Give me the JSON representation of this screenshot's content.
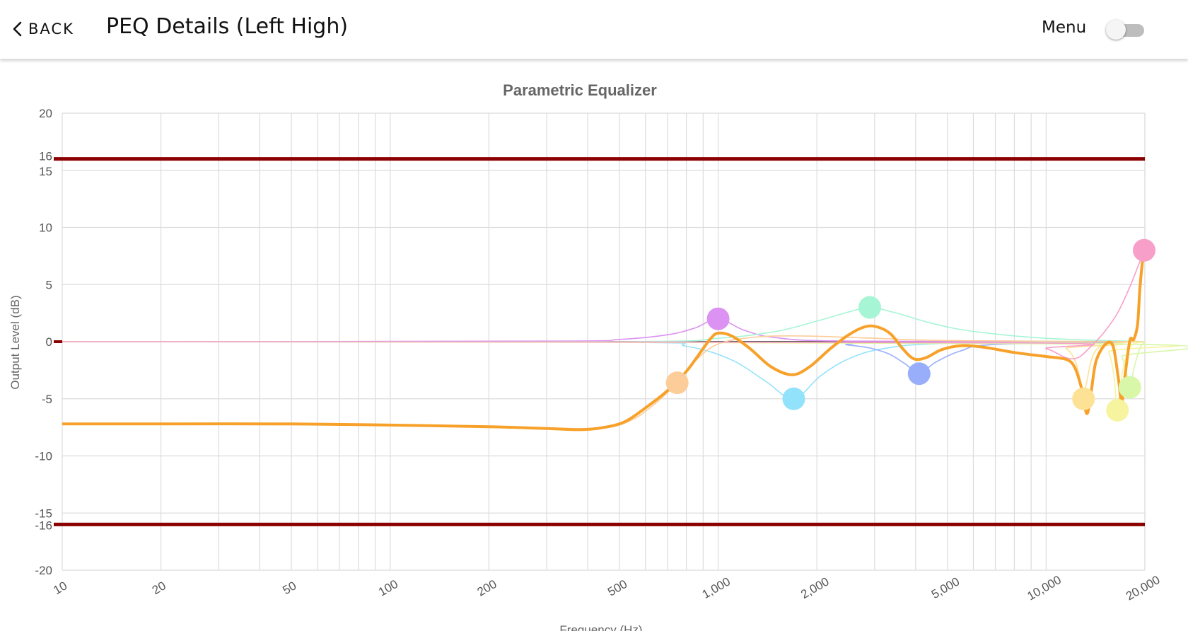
{
  "header": {
    "back_label": "BACK",
    "title": "PEQ Details (Left High)",
    "menu_label": "Menu",
    "menu_toggle_on": false
  },
  "chart_data": {
    "type": "line",
    "title": "Parametric Equalizer",
    "xlabel": "Frequency (Hz)",
    "ylabel": "Output Level (dB)",
    "x_scale": "log",
    "xlim": [
      10,
      20000
    ],
    "ylim": [
      -20,
      20
    ],
    "x_ticks": [
      {
        "value": 10,
        "label": "10"
      },
      {
        "value": 20,
        "label": "20"
      },
      {
        "value": 50,
        "label": "50"
      },
      {
        "value": 100,
        "label": "100"
      },
      {
        "value": 200,
        "label": "200"
      },
      {
        "value": 500,
        "label": "500"
      },
      {
        "value": 1000,
        "label": "1,000"
      },
      {
        "value": 2000,
        "label": "2,000"
      },
      {
        "value": 5000,
        "label": "5,000"
      },
      {
        "value": 10000,
        "label": "10,000"
      },
      {
        "value": 20000,
        "label": "20,000"
      }
    ],
    "y_ticks": [
      {
        "value": 20,
        "label": "20"
      },
      {
        "value": 16,
        "label": "16"
      },
      {
        "value": 15,
        "label": "15"
      },
      {
        "value": 10,
        "label": "10"
      },
      {
        "value": 5,
        "label": "5"
      },
      {
        "value": 0,
        "label": "0"
      },
      {
        "value": -5,
        "label": "-5"
      },
      {
        "value": -10,
        "label": "-10"
      },
      {
        "value": -15,
        "label": "-15"
      },
      {
        "value": -16,
        "label": "-16"
      },
      {
        "value": -20,
        "label": "-20"
      }
    ],
    "grid": true,
    "limit_lines": [
      16,
      -16
    ],
    "limit_color": "#8b0000",
    "response_color": "#f7a12a",
    "response_curve": [
      [
        10,
        -7.2
      ],
      [
        20,
        -7.2
      ],
      [
        50,
        -7.2
      ],
      [
        100,
        -7.3
      ],
      [
        200,
        -7.45
      ],
      [
        300,
        -7.6
      ],
      [
        380,
        -7.7
      ],
      [
        450,
        -7.5
      ],
      [
        520,
        -7.0
      ],
      [
        600,
        -5.8
      ],
      [
        700,
        -4.3
      ],
      [
        800,
        -2.6
      ],
      [
        900,
        -0.6
      ],
      [
        950,
        0.3
      ],
      [
        1000,
        0.75
      ],
      [
        1100,
        0.5
      ],
      [
        1250,
        -0.6
      ],
      [
        1450,
        -2.2
      ],
      [
        1680,
        -2.9
      ],
      [
        1900,
        -2.2
      ],
      [
        2200,
        -0.6
      ],
      [
        2500,
        0.6
      ],
      [
        2800,
        1.3
      ],
      [
        3050,
        1.3
      ],
      [
        3350,
        0.7
      ],
      [
        3650,
        -0.6
      ],
      [
        3950,
        -1.5
      ],
      [
        4300,
        -1.4
      ],
      [
        4800,
        -0.7
      ],
      [
        5500,
        -0.35
      ],
      [
        6500,
        -0.5
      ],
      [
        8000,
        -0.95
      ],
      [
        10000,
        -1.3
      ],
      [
        11500,
        -1.55
      ],
      [
        12200,
        -2.2
      ],
      [
        12800,
        -4.0
      ],
      [
        13300,
        -6.3
      ],
      [
        13700,
        -4.5
      ],
      [
        14200,
        -1.7
      ],
      [
        15200,
        -0.2
      ],
      [
        16000,
        -0.4
      ],
      [
        16600,
        -3.2
      ],
      [
        17000,
        -5.3
      ],
      [
        17400,
        -3.0
      ],
      [
        18000,
        0.1
      ],
      [
        18500,
        0.2
      ],
      [
        19000,
        1.5
      ],
      [
        19300,
        4.5
      ],
      [
        19700,
        7.2
      ],
      [
        20000,
        8.0
      ]
    ],
    "filters": [
      {
        "freq": 750,
        "gain": -3.6,
        "color": "#fccc99"
      },
      {
        "freq": 1000,
        "gain": 2.0,
        "color": "#db92f2"
      },
      {
        "freq": 1700,
        "gain": -5.0,
        "color": "#93e2fb"
      },
      {
        "freq": 2900,
        "gain": 3.0,
        "color": "#a6f5d4"
      },
      {
        "freq": 4100,
        "gain": -2.8,
        "color": "#98aefb"
      },
      {
        "freq": 13000,
        "gain": -5.0,
        "color": "#fde195"
      },
      {
        "freq": 16500,
        "gain": -6.0,
        "color": "#f6f49e"
      },
      {
        "freq": 18000,
        "gain": -4.0,
        "color": "#d8f7a9"
      },
      {
        "freq": 19900,
        "gain": 8.0,
        "color": "#f79fc9"
      }
    ],
    "filter_curves": [
      {
        "color": "#db92f2",
        "points": [
          [
            10,
            0
          ],
          [
            300,
            0.05
          ],
          [
            500,
            0.2
          ],
          [
            700,
            0.6
          ],
          [
            850,
            1.2
          ],
          [
            1000,
            2.0
          ],
          [
            1200,
            1.0
          ],
          [
            1500,
            0.35
          ],
          [
            2500,
            0.05
          ],
          [
            20000,
            0
          ]
        ]
      },
      {
        "color": "#a6f5d4",
        "points": [
          [
            10,
            0
          ],
          [
            500,
            0
          ],
          [
            1000,
            0.3
          ],
          [
            1500,
            0.9
          ],
          [
            2000,
            1.8
          ],
          [
            2500,
            2.6
          ],
          [
            2900,
            3.0
          ],
          [
            3500,
            2.5
          ],
          [
            4500,
            1.6
          ],
          [
            6000,
            0.9
          ],
          [
            10000,
            0.3
          ],
          [
            20000,
            0
          ]
        ]
      },
      {
        "color": "#93e2fb",
        "points": [
          [
            10,
            0
          ],
          [
            500,
            -0.05
          ],
          [
            800,
            -0.4
          ],
          [
            1100,
            -1.6
          ],
          [
            1400,
            -3.5
          ],
          [
            1700,
            -5.0
          ],
          [
            2050,
            -3.0
          ],
          [
            2500,
            -1.5
          ],
          [
            3200,
            -0.6
          ],
          [
            5000,
            -0.15
          ],
          [
            20000,
            0
          ]
        ]
      },
      {
        "color": "#98aefb",
        "points": [
          [
            10,
            0
          ],
          [
            1500,
            -0.05
          ],
          [
            2500,
            -0.3
          ],
          [
            3200,
            -0.9
          ],
          [
            3700,
            -1.9
          ],
          [
            4100,
            -2.8
          ],
          [
            4600,
            -1.8
          ],
          [
            5500,
            -0.8
          ],
          [
            7000,
            -0.25
          ],
          [
            20000,
            0
          ]
        ]
      },
      {
        "color": "#fccc99",
        "points": [
          [
            10,
            -7.25
          ],
          [
            100,
            -7.3
          ],
          [
            300,
            -7.55
          ],
          [
            450,
            -7.55
          ],
          [
            550,
            -6.8
          ],
          [
            650,
            -5.3
          ],
          [
            750,
            -3.6
          ],
          [
            850,
            -1.7
          ],
          [
            1000,
            -0.2
          ],
          [
            1300,
            0.4
          ],
          [
            1800,
            0.5
          ],
          [
            3000,
            0.3
          ],
          [
            5000,
            0.1
          ],
          [
            20000,
            0
          ]
        ]
      },
      {
        "color": "#fde195",
        "points": [
          [
            10,
            0
          ],
          [
            10000,
            -0.1
          ],
          [
            11500,
            -0.6
          ],
          [
            12300,
            -1.8
          ],
          [
            12800,
            -3.8
          ],
          [
            13000,
            -5.0
          ],
          [
            13300,
            -3.5
          ],
          [
            14000,
            -1.0
          ],
          [
            15500,
            -0.2
          ],
          [
            20000,
            0
          ]
        ]
      },
      {
        "color": "#f6f49e",
        "points": [
          [
            10,
            0
          ],
          [
            14500,
            -0.2
          ],
          [
            15500,
            -0.9
          ],
          [
            16100,
            -3.0
          ],
          [
            16500,
            -6.0
          ],
          [
            17000,
            -3.0
          ],
          [
            18000,
            -0.5
          ],
          [
            20000,
            0
          ]
        ]
      },
      {
        "color": "#d8f7a9",
        "points": [
          [
            10,
            0
          ],
          [
            16000,
            -0.2
          ],
          [
            17000,
            -1.3
          ],
          [
            17600,
            -2.8
          ],
          [
            18000,
            -4.0
          ],
          [
            18500,
            -2.4
          ],
          [
            19300,
            -0.6
          ],
          [
            20000,
            0
          ]
        ]
      },
      {
        "color": "#f79fc9",
        "points": [
          [
            10,
            0
          ],
          [
            8000,
            -0.1
          ],
          [
            10000,
            -0.6
          ],
          [
            11500,
            -1.4
          ],
          [
            12500,
            -1.4
          ],
          [
            13500,
            -0.6
          ],
          [
            15000,
            0.8
          ],
          [
            16500,
            2.5
          ],
          [
            18000,
            4.8
          ],
          [
            19000,
            6.5
          ],
          [
            19900,
            8.0
          ]
        ]
      }
    ]
  }
}
